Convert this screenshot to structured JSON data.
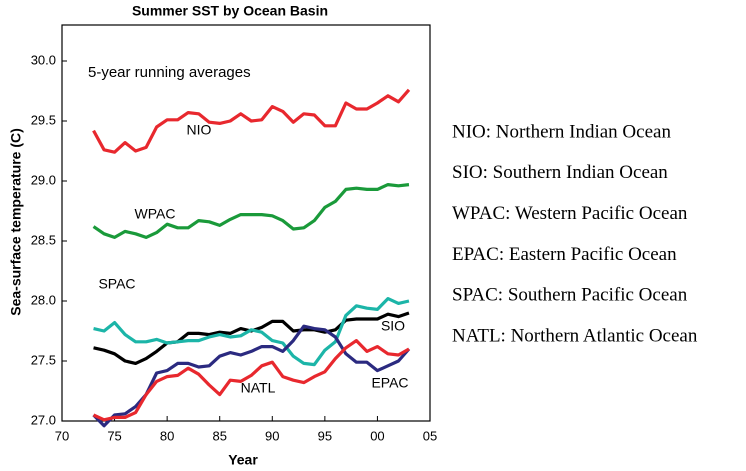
{
  "chart_data": {
    "type": "line",
    "title": "Summer SST by Ocean Basin",
    "subtitle": "5-year running averages",
    "xlabel": "Year",
    "ylabel": "Sea-surface temperature (C)",
    "x": [
      1973,
      1974,
      1975,
      1976,
      1977,
      1978,
      1979,
      1980,
      1981,
      1982,
      1983,
      1984,
      1985,
      1986,
      1987,
      1988,
      1989,
      1990,
      1991,
      1992,
      1993,
      1994,
      1995,
      1996,
      1997,
      1998,
      1999,
      2000,
      2001,
      2002,
      2003
    ],
    "series": [
      {
        "name": "NIO",
        "color": "#e8282e",
        "values": [
          29.42,
          29.26,
          29.24,
          29.32,
          29.25,
          29.28,
          29.45,
          29.51,
          29.51,
          29.57,
          29.56,
          29.49,
          29.48,
          29.5,
          29.56,
          29.5,
          29.51,
          29.62,
          29.58,
          29.49,
          29.56,
          29.55,
          29.46,
          29.46,
          29.65,
          29.6,
          29.6,
          29.65,
          29.71,
          29.66,
          29.76
        ]
      },
      {
        "name": "WPAC",
        "color": "#1a9a3a",
        "values": [
          28.62,
          28.56,
          28.53,
          28.58,
          28.56,
          28.53,
          28.57,
          28.64,
          28.61,
          28.61,
          28.67,
          28.66,
          28.63,
          28.68,
          28.72,
          28.72,
          28.72,
          28.71,
          28.67,
          28.6,
          28.61,
          28.67,
          28.78,
          28.83,
          28.93,
          28.94,
          28.93,
          28.93,
          28.97,
          28.96,
          28.97
        ]
      },
      {
        "name": "SIO",
        "color": "#000000",
        "values": [
          27.61,
          27.59,
          27.56,
          27.5,
          27.48,
          27.52,
          27.58,
          27.65,
          27.66,
          27.73,
          27.73,
          27.72,
          27.74,
          27.73,
          27.77,
          27.75,
          27.78,
          27.83,
          27.83,
          27.75,
          27.76,
          27.76,
          27.74,
          27.76,
          27.84,
          27.85,
          27.85,
          27.85,
          27.89,
          27.87,
          27.9
        ]
      },
      {
        "name": "SPAC",
        "color": "#1cb5a8",
        "values": [
          27.77,
          27.75,
          27.82,
          27.72,
          27.66,
          27.66,
          27.68,
          27.65,
          27.66,
          27.67,
          27.67,
          27.7,
          27.72,
          27.7,
          27.71,
          27.76,
          27.74,
          27.67,
          27.65,
          27.54,
          27.48,
          27.47,
          27.59,
          27.66,
          27.88,
          27.96,
          27.94,
          27.93,
          28.02,
          27.98,
          28.0
        ]
      },
      {
        "name": "EPAC",
        "color": "#2b2a80",
        "values": [
          27.05,
          26.96,
          27.05,
          27.06,
          27.12,
          27.22,
          27.4,
          27.42,
          27.48,
          27.48,
          27.45,
          27.46,
          27.54,
          27.57,
          27.55,
          27.58,
          27.62,
          27.62,
          27.58,
          27.67,
          27.79,
          27.77,
          27.76,
          27.7,
          27.56,
          27.49,
          27.49,
          27.42,
          27.46,
          27.5,
          27.6
        ]
      },
      {
        "name": "NATL",
        "color": "#e8282e",
        "values": [
          27.05,
          27.01,
          27.03,
          27.03,
          27.07,
          27.22,
          27.33,
          27.37,
          27.38,
          27.44,
          27.39,
          27.3,
          27.22,
          27.34,
          27.33,
          27.38,
          27.46,
          27.49,
          27.37,
          27.34,
          27.32,
          27.37,
          27.41,
          27.52,
          27.61,
          27.67,
          27.58,
          27.62,
          27.56,
          27.55,
          27.6
        ]
      }
    ],
    "xlim": [
      1970,
      2005
    ],
    "xticks": [
      {
        "value": 1970,
        "label": "70"
      },
      {
        "value": 1975,
        "label": "75"
      },
      {
        "value": 1980,
        "label": "80"
      },
      {
        "value": 1985,
        "label": "85"
      },
      {
        "value": 1990,
        "label": "90"
      },
      {
        "value": 1995,
        "label": "95"
      },
      {
        "value": 2000,
        "label": "00"
      },
      {
        "value": 2005,
        "label": "05"
      }
    ],
    "ylim": [
      27,
      30.3
    ],
    "yticks": [
      {
        "value": 27,
        "label": "27.0"
      },
      27.5,
      {
        "value": 28,
        "label": "28.0"
      },
      28.5,
      {
        "value": 29,
        "label": "29.0"
      },
      29.5,
      {
        "value": 30,
        "label": "30.0"
      }
    ],
    "grid": false,
    "key": [
      "NIO: Northern Indian Ocean",
      "SIO: Southern Indian Ocean",
      "WPAC: Western Pacific Ocean",
      "EPAC: Eastern Pacific Ocean",
      "SPAC: Southern Pacific Ocean",
      "NATL: Northern Atlantic Ocean"
    ]
  }
}
